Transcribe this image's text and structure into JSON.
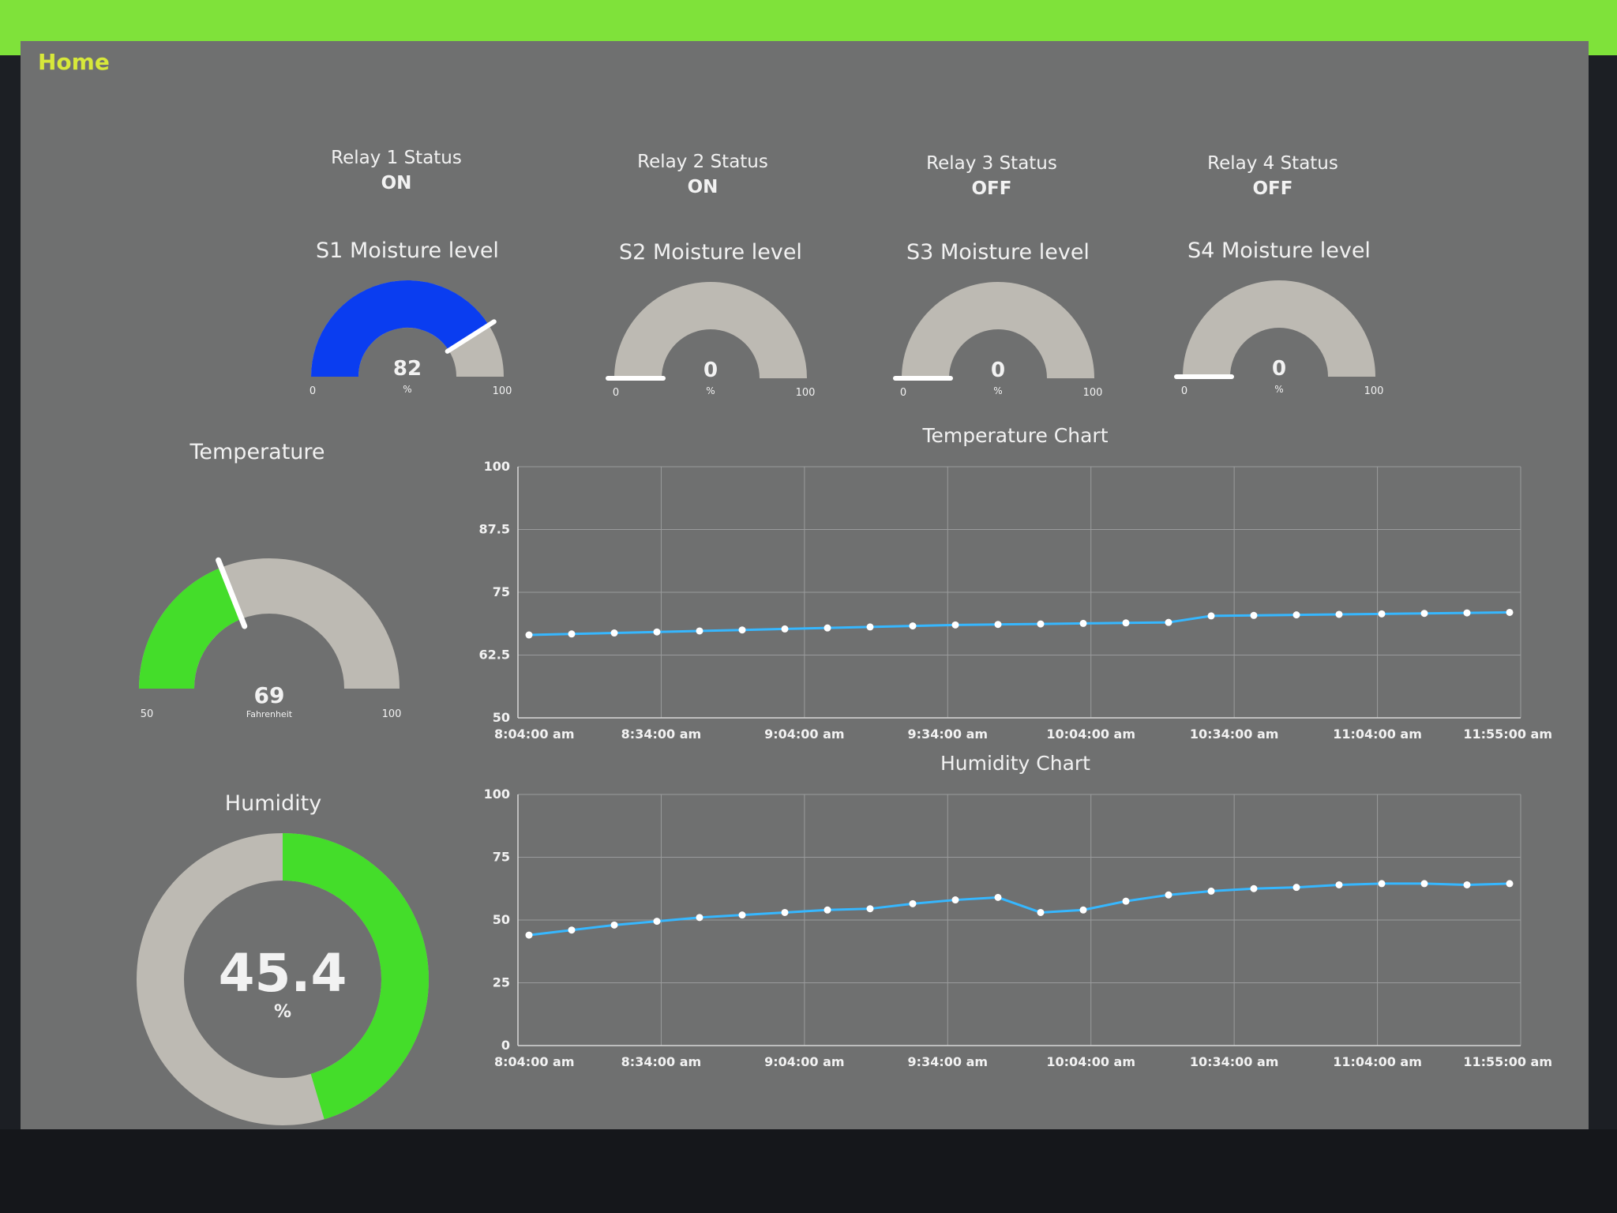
{
  "app": {
    "title": "Home"
  },
  "relays": [
    {
      "label": "Relay 1 Status",
      "value": "ON"
    },
    {
      "label": "Relay 2 Status",
      "value": "ON"
    },
    {
      "label": "Relay 3 Status",
      "value": "OFF"
    },
    {
      "label": "Relay 4 Status",
      "value": "OFF"
    }
  ],
  "moisture": [
    {
      "title": "S1 Moisture level",
      "value": 82,
      "display": "82",
      "unit": "%",
      "min": "0",
      "max": "100",
      "color": "#0a3df0"
    },
    {
      "title": "S2 Moisture level",
      "value": 0,
      "display": "0",
      "unit": "%",
      "min": "0",
      "max": "100",
      "color": "#0a3df0"
    },
    {
      "title": "S3 Moisture level",
      "value": 0,
      "display": "0",
      "unit": "%",
      "min": "0",
      "max": "100",
      "color": "#0a3df0"
    },
    {
      "title": "S4 Moisture level",
      "value": 0,
      "display": "0",
      "unit": "%",
      "min": "0",
      "max": "100",
      "color": "#0a3df0"
    }
  ],
  "temperature": {
    "title": "Temperature",
    "value": 69,
    "display": "69",
    "unit": "Fahrenheit",
    "min": "50",
    "max": "100",
    "range": [
      50,
      100
    ],
    "color": "#44dd2a"
  },
  "humidity": {
    "title": "Humidity",
    "value": 45.4,
    "display": "45.4",
    "unit": "%",
    "color": "#44dd2a"
  },
  "colors": {
    "track": "#bdbab3",
    "line": "#36b7ff",
    "needle": "#ffffff"
  },
  "chart_data": [
    {
      "type": "line",
      "title": "Temperature Chart",
      "ylim": [
        50,
        100
      ],
      "yticks": [
        "50",
        "62.5",
        "75",
        "87.5",
        "100"
      ],
      "xticks": [
        "8:04:00 am",
        "8:34:00 am",
        "9:04:00 am",
        "9:34:00 am",
        "10:04:00 am",
        "10:34:00 am",
        "11:04:00 am",
        "11:55:00 am"
      ],
      "xrange": [
        "8:04:00 am",
        "11:55:00 am"
      ],
      "x": [
        "8:04",
        "8:14",
        "8:24",
        "8:34",
        "8:44",
        "8:54",
        "9:04",
        "9:14",
        "9:24",
        "9:34",
        "9:44",
        "9:54",
        "10:04",
        "10:14",
        "10:24",
        "10:34",
        "10:44",
        "10:54",
        "11:04",
        "11:14",
        "11:24",
        "11:34",
        "11:44",
        "11:55"
      ],
      "series": [
        {
          "values": [
            66.5,
            66.7,
            66.9,
            67.1,
            67.3,
            67.5,
            67.7,
            67.9,
            68.1,
            68.3,
            68.5,
            68.6,
            68.7,
            68.8,
            68.9,
            69.0,
            70.3,
            70.4,
            70.5,
            70.6,
            70.7,
            70.8,
            70.9,
            71.0
          ]
        }
      ]
    },
    {
      "type": "line",
      "title": "Humidity Chart",
      "ylim": [
        0,
        100
      ],
      "yticks": [
        "0",
        "25",
        "50",
        "75",
        "100"
      ],
      "xticks": [
        "8:04:00 am",
        "8:34:00 am",
        "9:04:00 am",
        "9:34:00 am",
        "10:04:00 am",
        "10:34:00 am",
        "11:04:00 am",
        "11:55:00 am"
      ],
      "xrange": [
        "8:04:00 am",
        "11:55:00 am"
      ],
      "x": [
        "8:04",
        "8:14",
        "8:24",
        "8:34",
        "8:44",
        "8:54",
        "9:04",
        "9:14",
        "9:24",
        "9:34",
        "9:44",
        "9:54",
        "10:04",
        "10:14",
        "10:24",
        "10:34",
        "10:44",
        "10:54",
        "11:04",
        "11:14",
        "11:24",
        "11:34",
        "11:44",
        "11:55"
      ],
      "series": [
        {
          "values": [
            44,
            46,
            48,
            49.5,
            51,
            52,
            53,
            54,
            54.5,
            56.5,
            58,
            59,
            53,
            54,
            57.5,
            60,
            61.5,
            62.5,
            63,
            64,
            64.5,
            64.5,
            64,
            64.5
          ]
        }
      ]
    }
  ]
}
